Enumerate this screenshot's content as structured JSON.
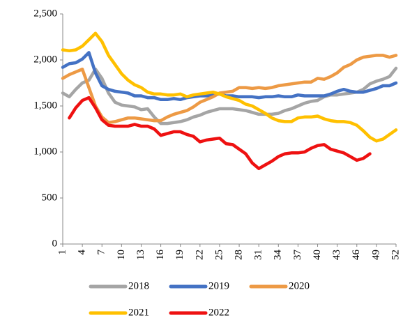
{
  "chart_data": {
    "type": "line",
    "x": [
      1,
      2,
      3,
      4,
      5,
      6,
      7,
      8,
      9,
      10,
      11,
      12,
      13,
      14,
      15,
      16,
      17,
      18,
      19,
      20,
      21,
      22,
      23,
      24,
      25,
      26,
      27,
      28,
      29,
      30,
      31,
      32,
      33,
      34,
      35,
      36,
      37,
      38,
      39,
      40,
      41,
      42,
      43,
      44,
      45,
      46,
      47,
      48,
      49,
      50,
      51,
      52
    ],
    "xlim": [
      1,
      52
    ],
    "xticks": [
      1,
      4,
      7,
      10,
      13,
      16,
      19,
      22,
      25,
      28,
      31,
      34,
      37,
      40,
      43,
      46,
      49,
      52
    ],
    "ylim": [
      0,
      2500
    ],
    "yticks": [
      0,
      500,
      {
        "value": 1000,
        "label": "1,000"
      },
      {
        "value": 1500,
        "label": "1,500"
      },
      {
        "value": 2000,
        "label": "2,000"
      },
      {
        "value": 2500,
        "label": "2,500"
      }
    ],
    "series": [
      {
        "name": "2018",
        "color": "#a5a5a5",
        "values": [
          1640,
          1600,
          1680,
          1750,
          1780,
          1900,
          1800,
          1640,
          1540,
          1510,
          1500,
          1490,
          1460,
          1470,
          1380,
          1310,
          1310,
          1320,
          1330,
          1350,
          1380,
          1400,
          1430,
          1450,
          1470,
          1470,
          1470,
          1460,
          1450,
          1430,
          1410,
          1410,
          1410,
          1420,
          1450,
          1470,
          1500,
          1530,
          1550,
          1560,
          1600,
          1620,
          1620,
          1630,
          1640,
          1650,
          1680,
          1740,
          1770,
          1790,
          1820,
          1910
        ]
      },
      {
        "name": "2019",
        "color": "#4472c4",
        "values": [
          1920,
          1960,
          1970,
          2010,
          2080,
          1860,
          1720,
          1680,
          1660,
          1650,
          1640,
          1610,
          1610,
          1590,
          1590,
          1570,
          1570,
          1580,
          1570,
          1590,
          1600,
          1610,
          1610,
          1620,
          1630,
          1610,
          1610,
          1600,
          1600,
          1600,
          1590,
          1600,
          1600,
          1610,
          1600,
          1600,
          1620,
          1610,
          1610,
          1610,
          1610,
          1630,
          1660,
          1680,
          1660,
          1650,
          1650,
          1670,
          1690,
          1720,
          1720,
          1750
        ]
      },
      {
        "name": "2020",
        "color": "#ed9a45",
        "values": [
          1800,
          1840,
          1870,
          1900,
          1700,
          1500,
          1380,
          1320,
          1330,
          1350,
          1370,
          1370,
          1360,
          1350,
          1340,
          1340,
          1380,
          1410,
          1430,
          1450,
          1490,
          1540,
          1570,
          1600,
          1640,
          1650,
          1660,
          1700,
          1700,
          1690,
          1700,
          1690,
          1700,
          1720,
          1730,
          1740,
          1750,
          1760,
          1760,
          1800,
          1790,
          1820,
          1860,
          1920,
          1950,
          2000,
          2030,
          2040,
          2050,
          2050,
          2030,
          2050
        ]
      },
      {
        "name": "2021",
        "color": "#ffc000",
        "values": [
          2110,
          2100,
          2110,
          2150,
          2220,
          2290,
          2200,
          2050,
          1950,
          1850,
          1780,
          1730,
          1700,
          1650,
          1630,
          1630,
          1620,
          1620,
          1630,
          1600,
          1620,
          1630,
          1640,
          1650,
          1630,
          1600,
          1580,
          1560,
          1520,
          1500,
          1460,
          1420,
          1370,
          1340,
          1330,
          1330,
          1370,
          1380,
          1380,
          1390,
          1360,
          1340,
          1330,
          1330,
          1320,
          1290,
          1230,
          1160,
          1120,
          1140,
          1190,
          1240
        ]
      },
      {
        "name": "2022",
        "color": "#ee1111",
        "values": [
          null,
          1370,
          1480,
          1560,
          1590,
          1480,
          1350,
          1290,
          1280,
          1280,
          1280,
          1300,
          1280,
          1280,
          1250,
          1180,
          1200,
          1220,
          1220,
          1190,
          1170,
          1110,
          1130,
          1140,
          1150,
          1090,
          1080,
          1030,
          980,
          880,
          820,
          860,
          900,
          950,
          980,
          990,
          990,
          1000,
          1040,
          1070,
          1080,
          1030,
          1010,
          990,
          950,
          910,
          930,
          980,
          null,
          null,
          null,
          null
        ]
      }
    ]
  }
}
